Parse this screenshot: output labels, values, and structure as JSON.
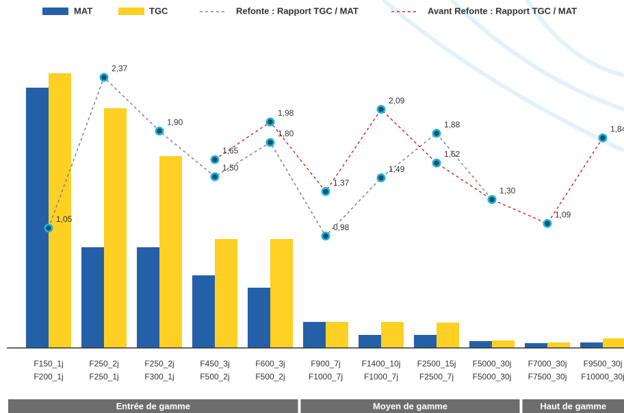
{
  "chart_data": {
    "type": "combo",
    "legend": "top",
    "categories": [
      [
        "F150_1j",
        "F200_1j"
      ],
      [
        "F250_2j",
        "F250_1j"
      ],
      [
        "F250_2j",
        "F300_1j"
      ],
      [
        "F450_3j",
        "F500_2j"
      ],
      [
        "F600_3j",
        "F500_2j"
      ],
      [
        "F900_7j",
        "F1000_7j"
      ],
      [
        "F1400_10j",
        "F1000_7j"
      ],
      [
        "F2500_15j",
        "F2500_7j"
      ],
      [
        "F5000_30j",
        "F5000_30j"
      ],
      [
        "F7000_30j",
        "F7500_30j"
      ],
      [
        "F9500_30j",
        "F10000_30j"
      ]
    ],
    "groups": [
      {
        "label": "Entrée de gamme",
        "span": 5
      },
      {
        "label": "Moyen de gamme",
        "span": 4
      },
      {
        "label": "Haut de gamme",
        "span": 2
      }
    ],
    "ylim": [
      0,
      500
    ],
    "y2lim": [
      0,
      3
    ],
    "series": [
      {
        "name": "MAT",
        "type": "bar",
        "color": "#2460a7",
        "values": [
          380,
          147,
          147,
          106,
          88,
          38,
          19,
          19,
          10,
          7,
          8
        ]
      },
      {
        "name": "TGC",
        "type": "bar",
        "color": "#fdd023",
        "values": [
          401,
          350,
          280,
          159,
          159,
          38,
          38,
          37,
          11,
          8,
          14
        ]
      },
      {
        "name": "Refonte : Rapport TGC / MAT",
        "type": "line",
        "axis": "y2",
        "color": "#808080",
        "values": [
          1.05,
          2.37,
          1.9,
          1.5,
          1.8,
          0.98,
          1.49,
          1.88,
          1.3,
          null,
          null
        ],
        "value_labels": [
          "1,05",
          "2,37",
          "1,90",
          "1,50",
          "1,80",
          "0,98",
          "1,49",
          "1,88",
          "1,30",
          null,
          null
        ]
      },
      {
        "name": "Avant Refonte : Rapport TGC / MAT",
        "type": "line",
        "axis": "y2",
        "color": "#d9262b",
        "values": [
          null,
          null,
          null,
          1.65,
          1.98,
          1.37,
          2.09,
          1.62,
          1.3,
          1.09,
          1.84
        ],
        "value_labels": [
          null,
          null,
          null,
          "1,65",
          "1,98",
          "1,37",
          "2,09",
          "1,62",
          null,
          "1,09",
          "1,84"
        ]
      }
    ]
  }
}
